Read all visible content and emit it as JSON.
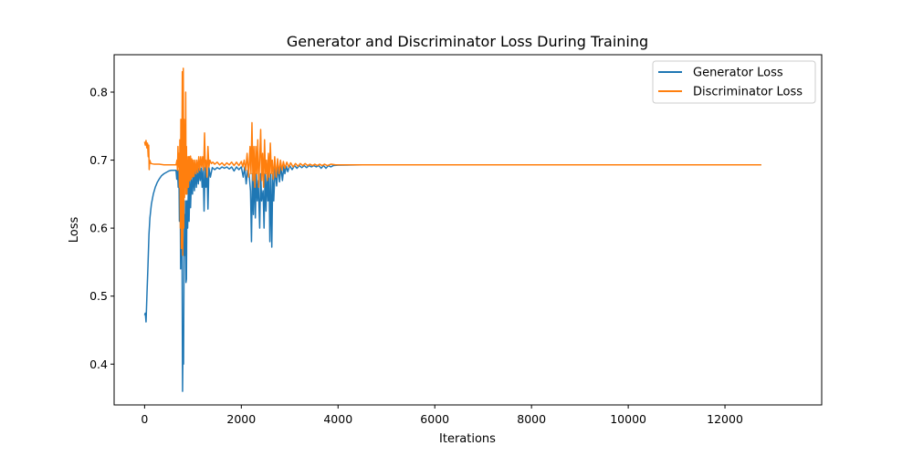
{
  "chart_data": {
    "type": "line",
    "title": "Generator and Discriminator Loss During Training",
    "xlabel": "Iterations",
    "ylabel": "Loss",
    "xlim": [
      -630,
      14000
    ],
    "ylim": [
      0.34,
      0.855
    ],
    "xticks": [
      0,
      2000,
      4000,
      6000,
      8000,
      10000,
      12000
    ],
    "yticks": [
      0.4,
      0.5,
      0.6,
      0.7,
      0.8
    ],
    "grid": false,
    "legend_position": "top-right",
    "series": [
      {
        "name": "Generator Loss",
        "color": "#1f77b4",
        "points": [
          [
            0,
            0.472
          ],
          [
            15,
            0.475
          ],
          [
            30,
            0.462
          ],
          [
            50,
            0.505
          ],
          [
            70,
            0.545
          ],
          [
            90,
            0.59
          ],
          [
            110,
            0.615
          ],
          [
            140,
            0.635
          ],
          [
            180,
            0.65
          ],
          [
            220,
            0.66
          ],
          [
            260,
            0.667
          ],
          [
            300,
            0.672
          ],
          [
            350,
            0.677
          ],
          [
            400,
            0.68
          ],
          [
            450,
            0.682
          ],
          [
            500,
            0.684
          ],
          [
            550,
            0.685
          ],
          [
            600,
            0.685
          ],
          [
            650,
            0.685
          ],
          [
            665,
            0.672
          ],
          [
            680,
            0.685
          ],
          [
            695,
            0.66
          ],
          [
            710,
            0.685
          ],
          [
            720,
            0.61
          ],
          [
            735,
            0.67
          ],
          [
            745,
            0.54
          ],
          [
            760,
            0.67
          ],
          [
            775,
            0.56
          ],
          [
            785,
            0.36
          ],
          [
            795,
            0.44
          ],
          [
            805,
            0.4
          ],
          [
            815,
            0.55
          ],
          [
            825,
            0.62
          ],
          [
            835,
            0.56
          ],
          [
            845,
            0.64
          ],
          [
            855,
            0.52
          ],
          [
            865,
            0.525
          ],
          [
            875,
            0.64
          ],
          [
            890,
            0.6
          ],
          [
            905,
            0.66
          ],
          [
            920,
            0.61
          ],
          [
            935,
            0.67
          ],
          [
            950,
            0.63
          ],
          [
            970,
            0.675
          ],
          [
            990,
            0.65
          ],
          [
            1010,
            0.68
          ],
          [
            1030,
            0.655
          ],
          [
            1050,
            0.685
          ],
          [
            1070,
            0.66
          ],
          [
            1090,
            0.685
          ],
          [
            1110,
            0.665
          ],
          [
            1130,
            0.688
          ],
          [
            1150,
            0.67
          ],
          [
            1170,
            0.688
          ],
          [
            1190,
            0.66
          ],
          [
            1210,
            0.69
          ],
          [
            1230,
            0.625
          ],
          [
            1250,
            0.689
          ],
          [
            1270,
            0.66
          ],
          [
            1290,
            0.689
          ],
          [
            1310,
            0.628
          ],
          [
            1330,
            0.689
          ],
          [
            1360,
            0.675
          ],
          [
            1400,
            0.689
          ],
          [
            1450,
            0.686
          ],
          [
            1500,
            0.689
          ],
          [
            1550,
            0.687
          ],
          [
            1600,
            0.69
          ],
          [
            1650,
            0.688
          ],
          [
            1700,
            0.69
          ],
          [
            1750,
            0.687
          ],
          [
            1800,
            0.69
          ],
          [
            1850,
            0.684
          ],
          [
            1900,
            0.69
          ],
          [
            1950,
            0.686
          ],
          [
            2000,
            0.69
          ],
          [
            2040,
            0.675
          ],
          [
            2070,
            0.69
          ],
          [
            2100,
            0.665
          ],
          [
            2130,
            0.685
          ],
          [
            2160,
            0.68
          ],
          [
            2190,
            0.655
          ],
          [
            2210,
            0.58
          ],
          [
            2230,
            0.68
          ],
          [
            2250,
            0.62
          ],
          [
            2270,
            0.69
          ],
          [
            2290,
            0.615
          ],
          [
            2310,
            0.68
          ],
          [
            2330,
            0.64
          ],
          [
            2350,
            0.67
          ],
          [
            2380,
            0.6
          ],
          [
            2400,
            0.68
          ],
          [
            2420,
            0.64
          ],
          [
            2450,
            0.655
          ],
          [
            2470,
            0.6
          ],
          [
            2490,
            0.68
          ],
          [
            2510,
            0.625
          ],
          [
            2530,
            0.68
          ],
          [
            2550,
            0.64
          ],
          [
            2570,
            0.69
          ],
          [
            2590,
            0.58
          ],
          [
            2610,
            0.68
          ],
          [
            2630,
            0.572
          ],
          [
            2650,
            0.68
          ],
          [
            2670,
            0.64
          ],
          [
            2700,
            0.69
          ],
          [
            2730,
            0.662
          ],
          [
            2760,
            0.69
          ],
          [
            2790,
            0.668
          ],
          [
            2820,
            0.691
          ],
          [
            2850,
            0.67
          ],
          [
            2880,
            0.691
          ],
          [
            2900,
            0.68
          ],
          [
            2930,
            0.691
          ],
          [
            2960,
            0.683
          ],
          [
            3000,
            0.692
          ],
          [
            3050,
            0.686
          ],
          [
            3100,
            0.692
          ],
          [
            3150,
            0.688
          ],
          [
            3200,
            0.692
          ],
          [
            3250,
            0.689
          ],
          [
            3300,
            0.692
          ],
          [
            3350,
            0.689
          ],
          [
            3400,
            0.692
          ],
          [
            3450,
            0.69
          ],
          [
            3500,
            0.692
          ],
          [
            3550,
            0.69
          ],
          [
            3600,
            0.692
          ],
          [
            3650,
            0.688
          ],
          [
            3700,
            0.692
          ],
          [
            3750,
            0.688
          ],
          [
            3800,
            0.692
          ],
          [
            3850,
            0.69
          ],
          [
            3900,
            0.692
          ],
          [
            4000,
            0.6925
          ],
          [
            4500,
            0.693
          ],
          [
            6000,
            0.693
          ],
          [
            8000,
            0.693
          ],
          [
            10000,
            0.693
          ],
          [
            12000,
            0.693
          ],
          [
            12750,
            0.693
          ]
        ]
      },
      {
        "name": "Discriminator Loss",
        "color": "#ff7f0e",
        "points": [
          [
            0,
            0.727
          ],
          [
            15,
            0.722
          ],
          [
            30,
            0.729
          ],
          [
            45,
            0.718
          ],
          [
            60,
            0.725
          ],
          [
            75,
            0.705
          ],
          [
            85,
            0.722
          ],
          [
            95,
            0.686
          ],
          [
            105,
            0.7
          ],
          [
            130,
            0.695
          ],
          [
            200,
            0.694
          ],
          [
            300,
            0.694
          ],
          [
            400,
            0.693
          ],
          [
            500,
            0.693
          ],
          [
            600,
            0.693
          ],
          [
            650,
            0.693
          ],
          [
            670,
            0.7
          ],
          [
            680,
            0.685
          ],
          [
            690,
            0.72
          ],
          [
            700,
            0.69
          ],
          [
            710,
            0.71
          ],
          [
            720,
            0.66
          ],
          [
            730,
            0.73
          ],
          [
            740,
            0.6
          ],
          [
            750,
            0.76
          ],
          [
            760,
            0.57
          ],
          [
            770,
            0.7
          ],
          [
            780,
            0.83
          ],
          [
            790,
            0.56
          ],
          [
            800,
            0.835
          ],
          [
            810,
            0.6
          ],
          [
            818,
            0.76
          ],
          [
            826,
            0.645
          ],
          [
            834,
            0.72
          ],
          [
            842,
            0.66
          ],
          [
            850,
            0.8
          ],
          [
            858,
            0.65
          ],
          [
            866,
            0.72
          ],
          [
            874,
            0.65
          ],
          [
            882,
            0.7
          ],
          [
            890,
            0.66
          ],
          [
            898,
            0.705
          ],
          [
            906,
            0.66
          ],
          [
            914,
            0.705
          ],
          [
            922,
            0.67
          ],
          [
            930,
            0.705
          ],
          [
            940,
            0.67
          ],
          [
            950,
            0.706
          ],
          [
            960,
            0.672
          ],
          [
            975,
            0.702
          ],
          [
            990,
            0.675
          ],
          [
            1005,
            0.7
          ],
          [
            1020,
            0.676
          ],
          [
            1040,
            0.7
          ],
          [
            1060,
            0.68
          ],
          [
            1080,
            0.7
          ],
          [
            1100,
            0.682
          ],
          [
            1120,
            0.705
          ],
          [
            1140,
            0.685
          ],
          [
            1160,
            0.705
          ],
          [
            1180,
            0.69
          ],
          [
            1200,
            0.705
          ],
          [
            1220,
            0.685
          ],
          [
            1240,
            0.74
          ],
          [
            1255,
            0.69
          ],
          [
            1270,
            0.7
          ],
          [
            1290,
            0.675
          ],
          [
            1310,
            0.72
          ],
          [
            1330,
            0.69
          ],
          [
            1350,
            0.7
          ],
          [
            1380,
            0.695
          ],
          [
            1410,
            0.697
          ],
          [
            1450,
            0.694
          ],
          [
            1500,
            0.697
          ],
          [
            1550,
            0.693
          ],
          [
            1600,
            0.696
          ],
          [
            1650,
            0.692
          ],
          [
            1700,
            0.696
          ],
          [
            1750,
            0.693
          ],
          [
            1800,
            0.697
          ],
          [
            1850,
            0.692
          ],
          [
            1900,
            0.697
          ],
          [
            1950,
            0.692
          ],
          [
            2000,
            0.698
          ],
          [
            2030,
            0.69
          ],
          [
            2060,
            0.7
          ],
          [
            2090,
            0.685
          ],
          [
            2120,
            0.71
          ],
          [
            2150,
            0.675
          ],
          [
            2180,
            0.72
          ],
          [
            2200,
            0.68
          ],
          [
            2220,
            0.755
          ],
          [
            2240,
            0.67
          ],
          [
            2260,
            0.72
          ],
          [
            2280,
            0.66
          ],
          [
            2300,
            0.72
          ],
          [
            2320,
            0.68
          ],
          [
            2340,
            0.73
          ],
          [
            2360,
            0.66
          ],
          [
            2380,
            0.7
          ],
          [
            2400,
            0.745
          ],
          [
            2420,
            0.67
          ],
          [
            2440,
            0.71
          ],
          [
            2460,
            0.66
          ],
          [
            2480,
            0.73
          ],
          [
            2500,
            0.68
          ],
          [
            2520,
            0.7
          ],
          [
            2540,
            0.67
          ],
          [
            2560,
            0.71
          ],
          [
            2580,
            0.675
          ],
          [
            2600,
            0.725
          ],
          [
            2620,
            0.68
          ],
          [
            2640,
            0.7
          ],
          [
            2660,
            0.672
          ],
          [
            2690,
            0.705
          ],
          [
            2720,
            0.675
          ],
          [
            2750,
            0.702
          ],
          [
            2780,
            0.68
          ],
          [
            2810,
            0.7
          ],
          [
            2840,
            0.685
          ],
          [
            2870,
            0.698
          ],
          [
            2900,
            0.688
          ],
          [
            2940,
            0.697
          ],
          [
            2980,
            0.69
          ],
          [
            3020,
            0.696
          ],
          [
            3070,
            0.69
          ],
          [
            3120,
            0.695
          ],
          [
            3170,
            0.691
          ],
          [
            3220,
            0.695
          ],
          [
            3270,
            0.692
          ],
          [
            3320,
            0.695
          ],
          [
            3370,
            0.692
          ],
          [
            3420,
            0.694
          ],
          [
            3470,
            0.692
          ],
          [
            3520,
            0.694
          ],
          [
            3570,
            0.692
          ],
          [
            3620,
            0.694
          ],
          [
            3670,
            0.692
          ],
          [
            3720,
            0.694
          ],
          [
            3780,
            0.692
          ],
          [
            3850,
            0.694
          ],
          [
            3950,
            0.693
          ],
          [
            4100,
            0.693
          ],
          [
            6000,
            0.693
          ],
          [
            8000,
            0.693
          ],
          [
            10000,
            0.693
          ],
          [
            12000,
            0.693
          ],
          [
            12750,
            0.693
          ]
        ]
      }
    ]
  }
}
